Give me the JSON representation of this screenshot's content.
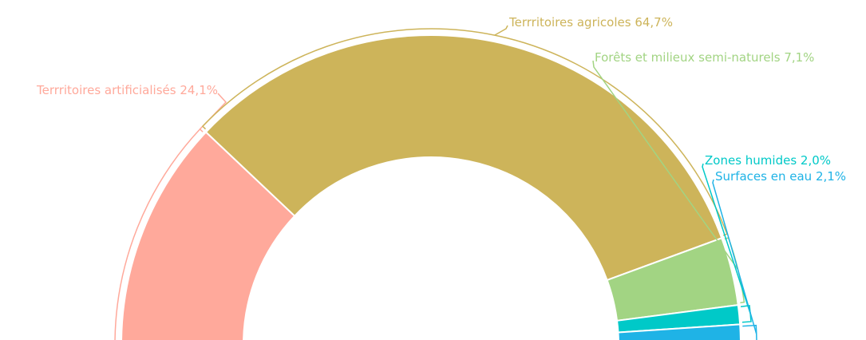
{
  "chart_data": {
    "type": "donut",
    "categories": [
      "Terrritoires artificialisés",
      "Terrritoires agricoles",
      "Forêts et milieux semi-naturels",
      "Zones humides",
      "Surfaces en eau"
    ],
    "values": [
      24.1,
      64.7,
      7.1,
      2.0,
      2.1
    ],
    "value_labels": [
      "24,1%",
      "64,7%",
      "7,1%",
      "2,0%",
      "2,1%"
    ],
    "colors": [
      "#ffa99b",
      "#cdb45a",
      "#a2d483",
      "#00c9c8",
      "#1fb3e6"
    ]
  }
}
